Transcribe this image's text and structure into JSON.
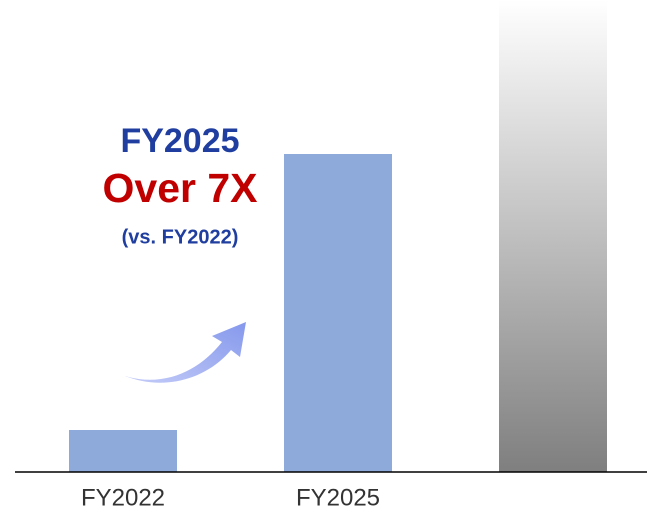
{
  "chart_data": {
    "type": "bar",
    "categories": [
      "FY2022",
      "FY2025",
      null
    ],
    "values": [
      42,
      318,
      472
    ],
    "colors": [
      "#8eaadb",
      "#8eaadb",
      "#7f7f7f"
    ],
    "fade": [
      false,
      false,
      true
    ],
    "ylim": [
      0,
      472
    ],
    "annotations": [
      "FY2025",
      "Over 7X",
      "(vs. FY2022)"
    ]
  }
}
